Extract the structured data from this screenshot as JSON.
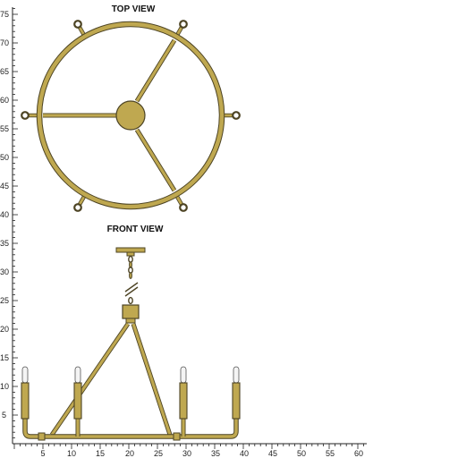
{
  "views": {
    "top_title": "TOP VIEW",
    "front_title": "FRONT VIEW"
  },
  "vertical_ruler_top": {
    "labels": [
      "75",
      "70",
      "65",
      "60",
      "55",
      "50",
      "45",
      "40"
    ]
  },
  "vertical_ruler_bottom": {
    "labels": [
      "35",
      "30",
      "25",
      "20",
      "15",
      "10",
      "5"
    ]
  },
  "horizontal_ruler": {
    "labels": [
      "5",
      "10",
      "15",
      "20",
      "25",
      "30",
      "35",
      "40",
      "45",
      "50",
      "55",
      "60"
    ]
  },
  "colors": {
    "brass_fill": "#bfa850",
    "brass_outline": "#4d4424",
    "candle_white": "#f4f4f4",
    "ruler": "#222222"
  }
}
